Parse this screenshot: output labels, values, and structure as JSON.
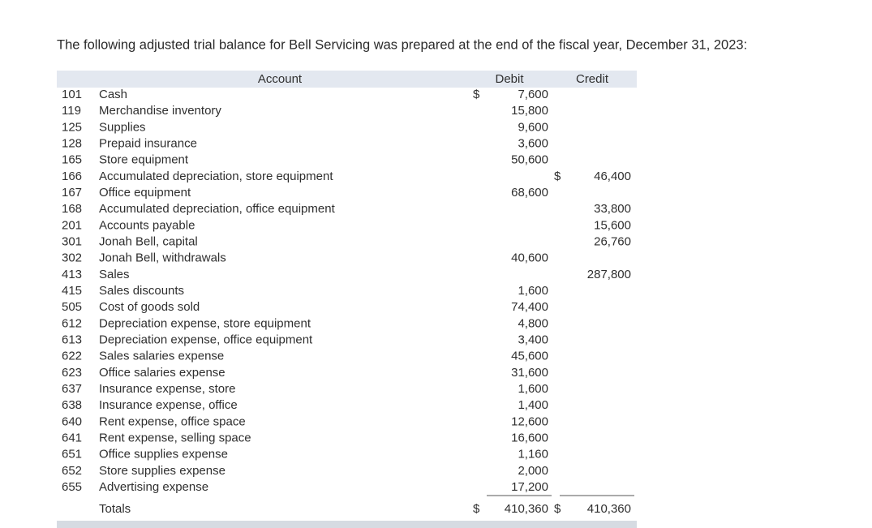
{
  "intro": "The following adjusted trial balance for Bell Servicing was prepared at the end of the fiscal year, December 31, 2023:",
  "table": {
    "header": {
      "account": "Account",
      "debit": "Debit",
      "credit": "Credit"
    },
    "currency_symbol": "$",
    "rows": [
      {
        "no": "101",
        "account": "Cash",
        "debit": "7,600",
        "credit": null
      },
      {
        "no": "119",
        "account": "Merchandise inventory",
        "debit": "15,800",
        "credit": null
      },
      {
        "no": "125",
        "account": "Supplies",
        "debit": "9,600",
        "credit": null
      },
      {
        "no": "128",
        "account": "Prepaid insurance",
        "debit": "3,600",
        "credit": null
      },
      {
        "no": "165",
        "account": "Store equipment",
        "debit": "50,600",
        "credit": null
      },
      {
        "no": "166",
        "account": "Accumulated depreciation, store equipment",
        "debit": null,
        "credit": "46,400"
      },
      {
        "no": "167",
        "account": "Office equipment",
        "debit": "68,600",
        "credit": null
      },
      {
        "no": "168",
        "account": "Accumulated depreciation, office equipment",
        "debit": null,
        "credit": "33,800"
      },
      {
        "no": "201",
        "account": "Accounts payable",
        "debit": null,
        "credit": "15,600"
      },
      {
        "no": "301",
        "account": "Jonah Bell, capital",
        "debit": null,
        "credit": "26,760"
      },
      {
        "no": "302",
        "account": "Jonah Bell, withdrawals",
        "debit": "40,600",
        "credit": null
      },
      {
        "no": "413",
        "account": "Sales",
        "debit": null,
        "credit": "287,800"
      },
      {
        "no": "415",
        "account": "Sales discounts",
        "debit": "1,600",
        "credit": null
      },
      {
        "no": "505",
        "account": "Cost of goods sold",
        "debit": "74,400",
        "credit": null
      },
      {
        "no": "612",
        "account": "Depreciation expense, store equipment",
        "debit": "4,800",
        "credit": null
      },
      {
        "no": "613",
        "account": "Depreciation expense, office equipment",
        "debit": "3,400",
        "credit": null
      },
      {
        "no": "622",
        "account": "Sales salaries expense",
        "debit": "45,600",
        "credit": null
      },
      {
        "no": "623",
        "account": "Office salaries expense",
        "debit": "31,600",
        "credit": null
      },
      {
        "no": "637",
        "account": "Insurance expense, store",
        "debit": "1,600",
        "credit": null
      },
      {
        "no": "638",
        "account": "Insurance expense, office",
        "debit": "1,400",
        "credit": null
      },
      {
        "no": "640",
        "account": "Rent expense, office space",
        "debit": "12,600",
        "credit": null
      },
      {
        "no": "641",
        "account": "Rent expense, selling space",
        "debit": "16,600",
        "credit": null
      },
      {
        "no": "651",
        "account": "Office supplies expense",
        "debit": "1,160",
        "credit": null
      },
      {
        "no": "652",
        "account": "Store supplies expense",
        "debit": "2,000",
        "credit": null
      },
      {
        "no": "655",
        "account": "Advertising expense",
        "debit": "17,200",
        "credit": null
      }
    ],
    "totals": {
      "label": "Totals",
      "debit": "410,360",
      "credit": "410,360"
    }
  }
}
